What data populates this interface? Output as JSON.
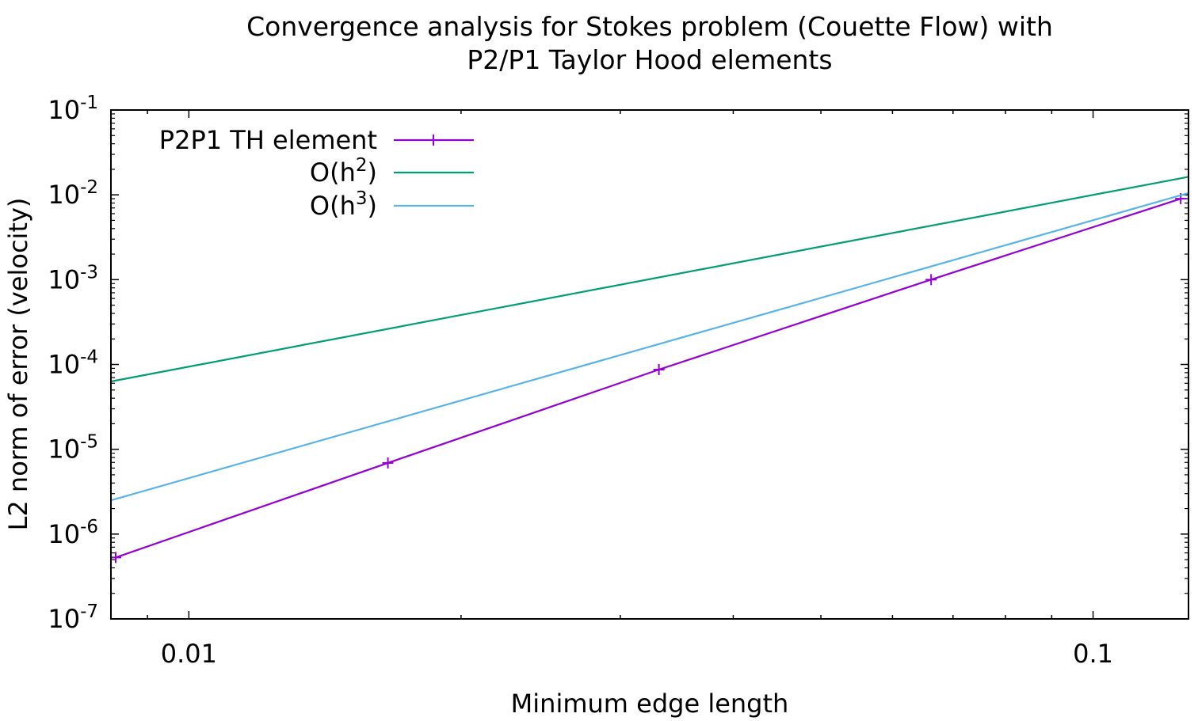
{
  "chart_data": {
    "type": "line",
    "title_line1": "Convergence analysis for Stokes problem (Couette Flow) with",
    "title_line2": "P2/P1 Taylor Hood elements",
    "xlabel": "Minimum edge length",
    "ylabel": "L2 norm of error (velocity)",
    "x_scale": "log",
    "y_scale": "log",
    "xlim": [
      0.0082,
      0.1275
    ],
    "ylim": [
      1e-07,
      0.1
    ],
    "x_ticks": [
      {
        "value": 0.01,
        "label": "0.01"
      },
      {
        "value": 0.1,
        "label": "0.1"
      }
    ],
    "y_ticks": [
      {
        "value": 1e-07,
        "base": "10",
        "exp": "-7"
      },
      {
        "value": 1e-06,
        "base": "10",
        "exp": "-6"
      },
      {
        "value": 1e-05,
        "base": "10",
        "exp": "-5"
      },
      {
        "value": 0.0001,
        "base": "10",
        "exp": "-4"
      },
      {
        "value": 0.001,
        "base": "10",
        "exp": "-3"
      },
      {
        "value": 0.01,
        "base": "10",
        "exp": "-2"
      },
      {
        "value": 0.1,
        "base": "10",
        "exp": "-1"
      }
    ],
    "grid": false,
    "legend_position": "top-left",
    "series": [
      {
        "name": "P2P1 TH element",
        "color": "#9400d3",
        "marker": "plus",
        "x": [
          0.0083,
          0.0166,
          0.0331,
          0.0662,
          0.125
        ],
        "y": [
          5.3e-07,
          6.9e-06,
          8.7e-05,
          0.001,
          0.009
        ]
      },
      {
        "name_base": "O(h",
        "name_sup": "2",
        "name_end": ")",
        "color": "#009e73",
        "marker": "none",
        "x": [
          0.0082,
          0.1275
        ],
        "y": [
          6.3e-05,
          0.0163
        ]
      },
      {
        "name_base": "O(h",
        "name_sup": "3",
        "name_end": ")",
        "color": "#56b4e9",
        "marker": "none",
        "x": [
          0.0082,
          0.1275
        ],
        "y": [
          2.5e-06,
          0.0105
        ]
      }
    ]
  }
}
